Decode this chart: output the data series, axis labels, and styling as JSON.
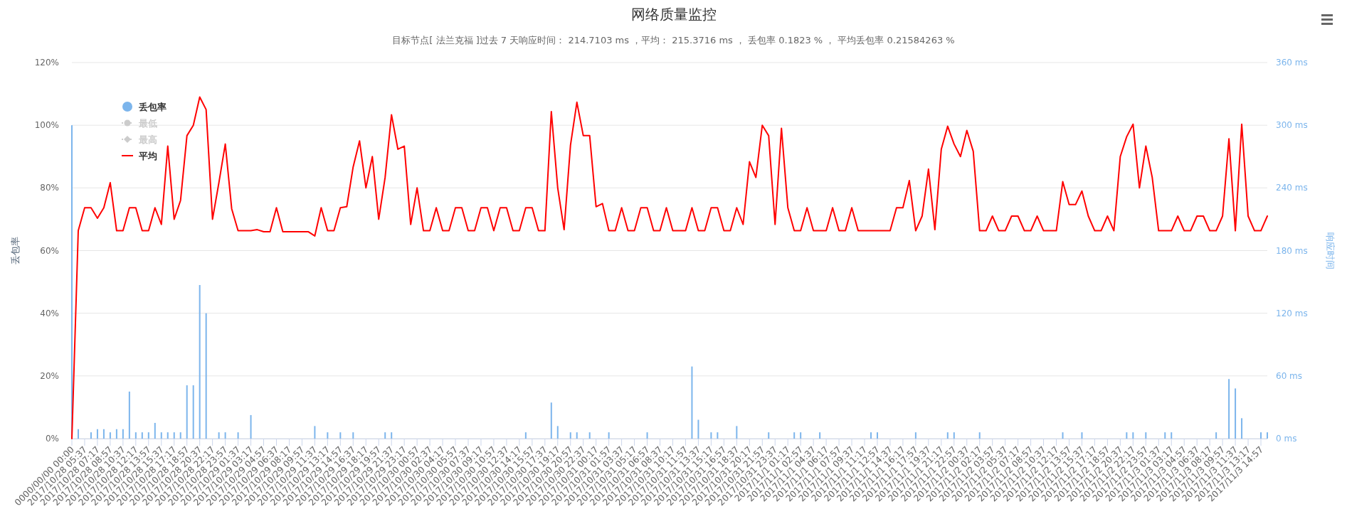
{
  "chart_data": {
    "type": "bar",
    "title": "网络质量监控",
    "subtitle": "目标节点[ 法兰克福 ]过去 7 天响应时间： 214.7103 ms ，平均： 215.3716 ms ， 丢包率 0.1823 % ， 平均丢包率 0.21584263 %",
    "ylabel": "丢包率",
    "y2label": "响应时间",
    "categories": [
      "0000/00/00 00:00",
      null,
      "2017/10/28 05:37",
      null,
      "2017/10/28 07:17",
      null,
      "2017/10/28 08:57",
      null,
      "2017/10/28 10:37",
      null,
      "2017/10/28 12:17",
      null,
      "2017/10/28 13:57",
      null,
      "2017/10/28 15:37",
      null,
      "2017/10/28 17:17",
      null,
      "2017/10/28 18:57",
      null,
      "2017/10/28 20:37",
      null,
      "2017/10/28 22:17",
      null,
      "2017/10/28 23:57",
      null,
      "2017/10/29 01:37",
      null,
      "2017/10/29 03:17",
      null,
      "2017/10/29 04:57",
      null,
      "2017/10/29 06:37",
      null,
      "2017/10/29 08:17",
      null,
      "2017/10/29 09:57",
      null,
      "2017/10/29 11:37",
      null,
      "2017/10/29 13:17",
      null,
      "2017/10/29 14:57",
      null,
      "2017/10/29 16:37",
      null,
      "2017/10/29 18:17",
      null,
      "2017/10/29 19:57",
      null,
      "2017/10/29 21:37",
      null,
      "2017/10/29 23:17",
      null,
      "2017/10/30 00:57",
      null,
      "2017/10/30 02:37",
      null,
      "2017/10/30 04:17",
      null,
      "2017/10/30 05:57",
      null,
      "2017/10/30 07:37",
      null,
      "2017/10/30 09:17",
      null,
      "2017/10/30 10:57",
      null,
      "2017/10/30 12:37",
      null,
      "2017/10/30 14:17",
      null,
      "2017/10/30 15:57",
      null,
      "2017/10/30 17:37",
      null,
      "2017/10/30 19:17",
      null,
      "2017/10/30 20:57",
      null,
      "2017/10/30 22:37",
      null,
      "2017/10/31 00:17",
      null,
      "2017/10/31 01:57",
      null,
      "2017/10/31 03:37",
      null,
      "2017/10/31 05:17",
      null,
      "2017/10/31 06:57",
      null,
      "2017/10/31 08:37",
      null,
      "2017/10/31 10:17",
      null,
      "2017/10/31 11:57",
      null,
      "2017/10/31 13:37",
      null,
      "2017/10/31 15:17",
      null,
      "2017/10/31 16:57",
      null,
      "2017/10/31 18:37",
      null,
      "2017/10/31 20:17",
      null,
      "2017/10/31 21:57",
      null,
      "2017/10/31 23:37",
      null,
      "2017/11/1 01:17",
      null,
      "2017/11/1 02:57",
      null,
      "2017/11/1 04:37",
      null,
      "2017/11/1 06:17",
      null,
      "2017/11/1 07:57",
      null,
      "2017/11/1 09:37",
      null,
      "2017/11/1 11:17",
      null,
      "2017/11/1 12:57",
      null,
      "2017/11/1 14:37",
      null,
      "2017/11/1 16:17",
      null,
      "2017/11/1 17:57",
      null,
      "2017/11/1 19:37",
      null,
      "2017/11/1 21:17",
      null,
      "2017/11/1 22:57",
      null,
      "2017/11/2 00:37",
      null,
      "2017/11/2 02:17",
      null,
      "2017/11/2 03:57",
      null,
      "2017/11/2 05:37",
      null,
      "2017/11/2 07:17",
      null,
      "2017/11/2 08:57",
      null,
      "2017/11/2 10:37",
      null,
      "2017/11/2 12:17",
      null,
      "2017/11/2 13:57",
      null,
      "2017/11/2 15:37",
      null,
      "2017/11/2 17:17",
      null,
      "2017/11/2 18:57",
      null,
      "2017/11/2 20:37",
      null,
      "2017/11/2 22:17",
      null,
      "2017/11/2 23:57",
      null,
      "2017/11/3 01:37",
      null,
      "2017/11/3 03:17",
      null,
      "2017/11/3 04:57",
      null,
      "2017/11/3 06:37",
      null,
      "2017/11/3 08:17",
      null,
      "2017/11/3 09:57",
      null,
      "2017/11/3 11:37",
      null,
      "2017/11/3 13:17",
      null,
      "2017/11/3 14:57",
      null
    ],
    "series": [
      {
        "name": "丢包率",
        "color": "#7cb5ec",
        "values": [
          100,
          3,
          null,
          2,
          3,
          3,
          2,
          3,
          3,
          15,
          2,
          2,
          2,
          5,
          2,
          2,
          2,
          2,
          17,
          17,
          49,
          40,
          null,
          2,
          2,
          null,
          2,
          null,
          7.5,
          null,
          null,
          null,
          null,
          null,
          null,
          null,
          null,
          null,
          4,
          null,
          2,
          null,
          2,
          null,
          2,
          null,
          null,
          null,
          null,
          2,
          2,
          null,
          null,
          null,
          null,
          null,
          null,
          null,
          null,
          null,
          null,
          null,
          null,
          null,
          null,
          null,
          null,
          null,
          null,
          null,
          null,
          2,
          null,
          null,
          null,
          11.5,
          4,
          null,
          2,
          2,
          null,
          2,
          null,
          null,
          2,
          null,
          null,
          null,
          null,
          null,
          2,
          null,
          null,
          null,
          null,
          null,
          null,
          23,
          6,
          null,
          2,
          2,
          null,
          null,
          4,
          null,
          null,
          null,
          null,
          2,
          null,
          null,
          null,
          2,
          2,
          null,
          null,
          2,
          null,
          null,
          null,
          null,
          null,
          null,
          null,
          2,
          2,
          null,
          null,
          null,
          null,
          null,
          2,
          null,
          null,
          null,
          null,
          2,
          2,
          null,
          null,
          null,
          2,
          null,
          null,
          null,
          null,
          null,
          null,
          null,
          null,
          null,
          null,
          null,
          null,
          2,
          null,
          null,
          2,
          null,
          null,
          null,
          null,
          null,
          null,
          2,
          2,
          null,
          2,
          null,
          null,
          2,
          2,
          null,
          null,
          null,
          null,
          null,
          null,
          2,
          null,
          19,
          16,
          6.5,
          null,
          null,
          2,
          2
        ]
      },
      {
        "name": "最低",
        "type": "line",
        "color": "#cccccc",
        "marker": "circle",
        "axis": "y2",
        "values": [
          null,
          null,
          null,
          null,
          null,
          null,
          null,
          null,
          null,
          null,
          null,
          null,
          null,
          null,
          null,
          null,
          null,
          null,
          null,
          null,
          null,
          null,
          null,
          null,
          null,
          null,
          null,
          null,
          null,
          null,
          null,
          null,
          null,
          null,
          null,
          null,
          null,
          null,
          null,
          null,
          null,
          null,
          null,
          null,
          null,
          null,
          null,
          null,
          null,
          null,
          null,
          null,
          null,
          null,
          null,
          null,
          null,
          null,
          null,
          null,
          null,
          null,
          null,
          null,
          null,
          null,
          null,
          null,
          null,
          null,
          null,
          null,
          null,
          null,
          null,
          null,
          null,
          null,
          null,
          null,
          null,
          null,
          null,
          null,
          null,
          null,
          null,
          null,
          null,
          null,
          null,
          null,
          null,
          null,
          null,
          null,
          null,
          null,
          null,
          null,
          null,
          null,
          null,
          null,
          null,
          null,
          null,
          null,
          null,
          null,
          null,
          null,
          null,
          null,
          null,
          null,
          null,
          null,
          null,
          null,
          null,
          null,
          null,
          null,
          null,
          null,
          null,
          null,
          null,
          null,
          null,
          null,
          null,
          null,
          null,
          null,
          null,
          null,
          null,
          null,
          null,
          null,
          null,
          null,
          null,
          null,
          null,
          null,
          null,
          null,
          null,
          null,
          null,
          null,
          null,
          null,
          null,
          null,
          null,
          null,
          null,
          null,
          null,
          null,
          null,
          null,
          null,
          null,
          null,
          null,
          null,
          null,
          null,
          null,
          null,
          null,
          null,
          null,
          null,
          null,
          null,
          null,
          null,
          null,
          null,
          null,
          null,
          null
        ]
      },
      {
        "name": "最高",
        "type": "line",
        "color": "#cccccc",
        "marker": "diamond",
        "axis": "y2",
        "values": [
          null,
          null,
          null,
          null,
          null,
          null,
          null,
          null,
          null,
          null,
          null,
          null,
          null,
          null,
          null,
          null,
          null,
          null,
          null,
          null,
          null,
          null,
          null,
          null,
          null,
          null,
          null,
          null,
          null,
          null,
          null,
          null,
          null,
          null,
          null,
          null,
          null,
          null,
          null,
          null,
          null,
          null,
          null,
          null,
          null,
          null,
          null,
          null,
          null,
          null,
          null,
          null,
          null,
          null,
          null,
          null,
          null,
          null,
          null,
          null,
          null,
          null,
          null,
          null,
          null,
          null,
          null,
          null,
          null,
          null,
          null,
          null,
          null,
          null,
          null,
          null,
          null,
          null,
          null,
          null,
          null,
          null,
          null,
          null,
          null,
          null,
          null,
          null,
          null,
          null,
          null,
          null,
          null,
          null,
          null,
          null,
          null,
          null,
          null,
          null,
          null,
          null,
          null,
          null,
          null,
          null,
          null,
          null,
          null,
          null,
          null,
          null,
          null,
          null,
          null,
          null,
          null,
          null,
          null,
          null,
          null,
          null,
          null,
          null,
          null,
          null,
          null,
          null,
          null,
          null,
          null,
          null,
          null,
          null,
          null,
          null,
          null,
          null,
          null,
          null,
          null,
          null,
          null,
          null,
          null,
          null,
          null,
          null,
          null,
          null,
          null,
          null,
          null,
          null,
          null,
          null,
          null,
          null,
          null,
          null,
          null,
          null,
          null,
          null,
          null,
          null,
          null,
          null,
          null,
          null,
          null,
          null,
          null,
          null,
          null,
          null,
          null,
          null,
          null,
          null,
          null,
          null,
          null,
          null,
          null,
          null,
          null,
          null
        ]
      },
      {
        "name": "平均",
        "type": "line",
        "color": "#ff0000",
        "axis": "y2",
        "values": [
          0,
          199,
          221,
          221,
          211,
          221,
          245,
          199,
          199,
          221,
          221,
          199,
          199,
          221,
          205,
          280,
          210,
          228,
          290,
          300,
          327,
          315,
          210,
          245,
          282,
          220,
          199,
          199,
          199,
          200,
          198,
          198,
          221,
          198,
          198,
          198,
          198,
          198,
          194,
          221,
          199,
          199,
          221,
          222,
          260,
          285,
          240,
          270,
          210,
          250,
          310,
          277,
          280,
          205,
          240,
          199,
          199,
          221,
          199,
          199,
          221,
          221,
          199,
          199,
          221,
          221,
          199,
          221,
          221,
          199,
          199,
          221,
          221,
          199,
          199,
          313,
          240,
          200,
          281,
          322,
          290,
          290,
          222,
          225,
          199,
          199,
          221,
          199,
          199,
          221,
          221,
          199,
          199,
          221,
          199,
          199,
          199,
          221,
          199,
          199,
          221,
          221,
          199,
          199,
          221,
          205,
          265,
          250,
          300,
          290,
          205,
          297,
          221,
          199,
          199,
          221,
          199,
          199,
          199,
          221,
          199,
          199,
          221,
          199,
          199,
          199,
          199,
          199,
          199,
          221,
          221,
          247,
          199,
          213,
          258,
          200,
          277,
          299,
          282,
          270,
          295,
          275,
          199,
          199,
          213,
          199,
          199,
          213,
          213,
          199,
          199,
          213,
          199,
          199,
          199,
          246,
          224,
          224,
          237,
          213,
          199,
          199,
          213,
          199,
          270,
          289,
          301,
          240,
          280,
          250,
          199,
          199,
          199,
          213,
          199,
          199,
          213,
          213,
          199,
          199,
          213,
          287,
          199,
          301,
          213,
          199,
          199,
          213
        ]
      }
    ],
    "ylim": [
      0,
      120
    ],
    "yticks": [
      {
        "value": 0,
        "label": "0%"
      },
      {
        "value": 20,
        "label": "20%"
      },
      {
        "value": 40,
        "label": "40%"
      },
      {
        "value": 60,
        "label": "60%"
      },
      {
        "value": 80,
        "label": "80%"
      },
      {
        "value": 100,
        "label": "100%"
      },
      {
        "value": 120,
        "label": "120%"
      }
    ],
    "y2lim": [
      0,
      360
    ],
    "y2ticks": [
      {
        "value": 0,
        "label": "0 ms"
      },
      {
        "value": 60,
        "label": "60 ms"
      },
      {
        "value": 120,
        "label": "120 ms"
      },
      {
        "value": 180,
        "label": "180 ms"
      },
      {
        "value": 240,
        "label": "240 ms"
      },
      {
        "value": 300,
        "label": "300 ms"
      },
      {
        "value": 360,
        "label": "360 ms"
      }
    ],
    "grid": "y",
    "legend": "top left"
  }
}
